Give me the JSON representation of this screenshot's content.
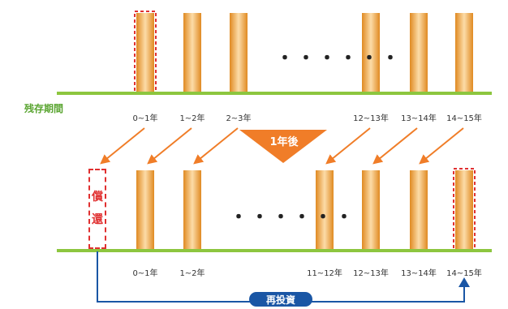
{
  "colors": {
    "bar": "#e8a13c",
    "ground": "#8dc63f",
    "arrow": "#f07d28",
    "highlight": "#e03030",
    "reinvest": "#1a56a5",
    "label_green": "#5aa531"
  },
  "remaining_label": "残存期間",
  "callout": "1年後",
  "redeem_chars": [
    "償",
    "還"
  ],
  "reinvest_label": "再投資",
  "ellipsis": "・・・・・・",
  "top_labels": [
    "0~1年",
    "1~2年",
    "2~3年",
    "12~13年",
    "13~14年",
    "14~15年"
  ],
  "bottom_labels": [
    "0~1年",
    "1~2年",
    "11~12年",
    "12~13年",
    "13~14年",
    "14~15年"
  ]
}
